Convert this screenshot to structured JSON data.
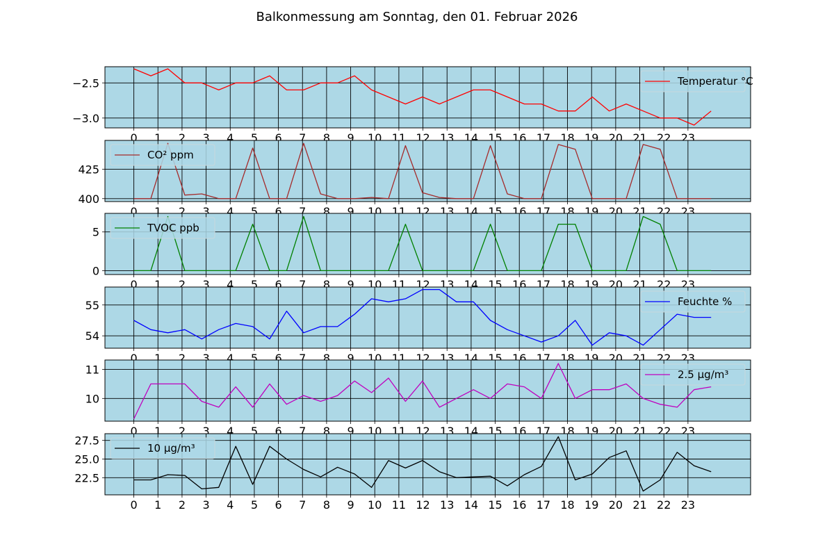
{
  "title": "Balkonmessung am Sonntag, den 01. Februar 2026",
  "chart_data": [
    {
      "type": "line",
      "series": [
        {
          "name": "Temperatur °C",
          "color": "#ff0000",
          "values": [
            -2.3,
            -2.4,
            -2.3,
            -2.5,
            -2.5,
            -2.6,
            -2.5,
            -2.5,
            -2.4,
            -2.6,
            -2.6,
            -2.5,
            -2.5,
            -2.4,
            -2.6,
            -2.7,
            -2.8,
            -2.7,
            -2.8,
            -2.7,
            -2.6,
            -2.6,
            -2.7,
            -2.8,
            -2.8,
            -2.9,
            -2.9,
            -2.7,
            -2.9,
            -2.8,
            -2.9,
            -3.0,
            -3.0,
            -3.1,
            -2.9
          ]
        }
      ],
      "yticks": [
        -2.5,
        -3.0
      ],
      "ytick_labels": [
        "−2.5",
        "−3.0"
      ],
      "ylim": [
        -3.14,
        -2.27
      ],
      "legend_position": "upper right",
      "grid": true
    },
    {
      "type": "line",
      "series": [
        {
          "name": "CO² ppm",
          "color": "#a52a2a",
          "values": [
            400,
            400,
            447,
            403,
            404,
            400,
            400,
            443,
            400,
            400,
            447,
            404,
            400,
            400,
            401,
            400,
            445,
            405,
            401,
            400,
            400,
            445,
            404,
            400,
            400,
            446,
            442,
            400,
            400,
            400,
            446,
            442,
            400,
            400,
            400
          ]
        }
      ],
      "yticks": [
        425,
        400
      ],
      "ytick_labels": [
        "425",
        "400"
      ],
      "ylim": [
        397.5,
        449.5
      ],
      "legend_position": "upper left",
      "grid": true
    },
    {
      "type": "line",
      "series": [
        {
          "name": "TVOC ppb",
          "color": "#008000",
          "values": [
            0,
            0,
            7,
            0,
            0,
            0,
            0,
            6,
            0,
            0,
            7,
            0,
            0,
            0,
            0,
            0,
            6,
            0,
            0,
            0,
            0,
            6,
            0,
            0,
            0,
            6,
            6,
            0,
            0,
            0,
            7,
            6,
            0,
            0,
            0
          ]
        }
      ],
      "yticks": [
        5,
        0
      ],
      "ytick_labels": [
        "5",
        "0"
      ],
      "ylim": [
        -0.5,
        7.4
      ],
      "legend_position": "upper left",
      "grid": true
    },
    {
      "type": "line",
      "series": [
        {
          "name": "Feuchte %",
          "color": "#0000ff",
          "values": [
            54.5,
            54.2,
            54.1,
            54.2,
            53.9,
            54.2,
            54.4,
            54.3,
            53.9,
            54.8,
            54.1,
            54.3,
            54.3,
            54.7,
            55.2,
            55.1,
            55.2,
            55.5,
            55.5,
            55.1,
            55.1,
            54.5,
            54.2,
            54.0,
            53.8,
            54.0,
            54.5,
            53.7,
            54.1,
            54.0,
            53.7,
            54.2,
            54.7,
            54.6,
            54.6
          ]
        }
      ],
      "yticks": [
        55,
        54
      ],
      "ytick_labels": [
        "55",
        "54"
      ],
      "ylim": [
        53.6,
        55.58
      ],
      "legend_position": "upper right",
      "grid": true
    },
    {
      "type": "line",
      "series": [
        {
          "name": "2.5 µg/m³",
          "color": "#bf00bf",
          "values": [
            9.3,
            10.5,
            10.5,
            10.5,
            9.9,
            9.7,
            10.4,
            9.7,
            10.5,
            9.8,
            10.1,
            9.9,
            10.1,
            10.6,
            10.2,
            10.7,
            9.9,
            10.6,
            9.7,
            10.0,
            10.3,
            10.0,
            10.5,
            10.4,
            10.0,
            11.2,
            10.0,
            10.3,
            10.3,
            10.5,
            10.0,
            9.8,
            9.7,
            10.3,
            10.4
          ]
        }
      ],
      "yticks": [
        11,
        10
      ],
      "ytick_labels": [
        "11",
        "10"
      ],
      "ylim": [
        9.22,
        11.32
      ],
      "legend_position": "upper right",
      "grid": true
    },
    {
      "type": "line",
      "series": [
        {
          "name": "10 µg/m³",
          "color": "#000000",
          "values": [
            22.2,
            22.2,
            22.9,
            22.8,
            21.0,
            21.2,
            26.7,
            21.6,
            26.7,
            25.0,
            23.6,
            22.6,
            23.9,
            23.0,
            21.2,
            24.8,
            23.8,
            24.8,
            23.3,
            22.5,
            22.6,
            22.7,
            21.4,
            22.9,
            24.0,
            28.0,
            22.2,
            23.0,
            25.2,
            26.1,
            20.7,
            22.2,
            25.9,
            24.1,
            23.3
          ]
        }
      ],
      "yticks": [
        27.5,
        25.0,
        22.5
      ],
      "ytick_labels": [
        "27.5",
        "25.0",
        "22.5"
      ],
      "ylim": [
        20.2,
        28.4
      ],
      "legend_position": "upper left",
      "grid": true
    }
  ],
  "x_tick_labels": [
    "0",
    "1",
    "2",
    "3",
    "4",
    "5",
    "6",
    "7",
    "8",
    "9",
    "10",
    "11",
    "12",
    "13",
    "14",
    "15",
    "16",
    "17",
    "18",
    "19",
    "20",
    "21",
    "22",
    "23"
  ],
  "background_color": "#add8e6"
}
